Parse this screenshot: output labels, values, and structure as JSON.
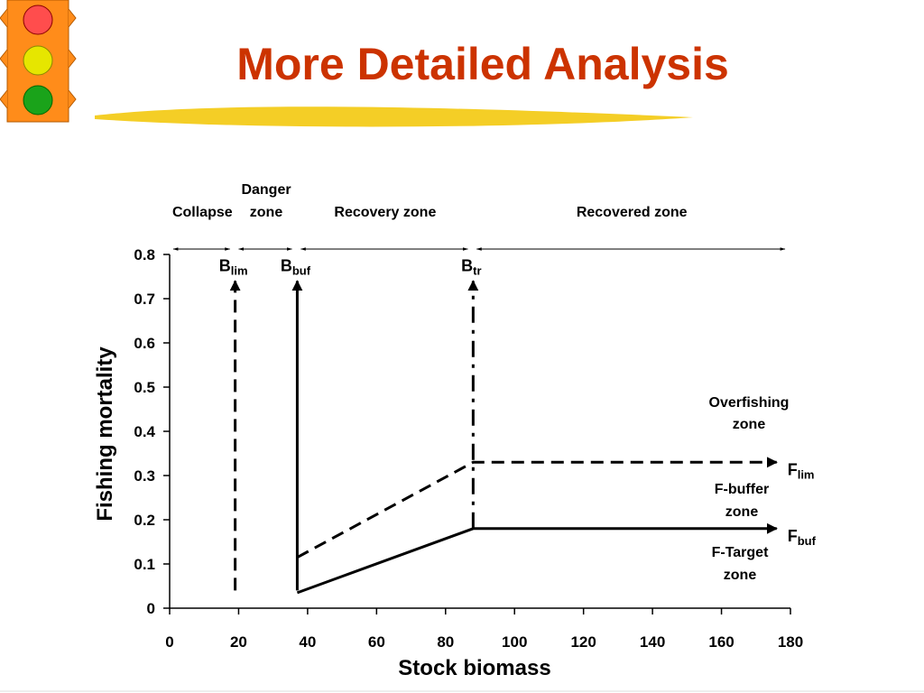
{
  "title": "More Detailed Analysis",
  "chart_data": {
    "type": "line",
    "x_label": "Stock biomass",
    "y_label": "Fishing mortality",
    "xlim": [
      0,
      180
    ],
    "ylim": [
      0,
      0.8
    ],
    "xticks": [
      0,
      20,
      40,
      60,
      80,
      100,
      120,
      140,
      160,
      180
    ],
    "yticks": [
      0,
      0.1,
      0.2,
      0.3,
      0.4,
      0.5,
      0.6,
      0.7,
      0.8
    ],
    "zones": [
      {
        "lines": [
          "Collapse"
        ],
        "range": [
          0,
          19
        ]
      },
      {
        "lines": [
          "Danger",
          "zone"
        ],
        "range": [
          19,
          37
        ]
      },
      {
        "lines": [
          "Recovery zone"
        ],
        "range": [
          37,
          88
        ]
      },
      {
        "lines": [
          "Recovered zone"
        ],
        "range": [
          88,
          180
        ]
      }
    ],
    "series": [
      {
        "label": "B",
        "label_sub": "lim",
        "color": "#000000",
        "style": "dashed",
        "x": [
          19,
          19
        ],
        "values": [
          0.04,
          0.74
        ]
      },
      {
        "label": "B",
        "label_sub": "buf",
        "color": "#000000",
        "style": "solid",
        "x": [
          37,
          37
        ],
        "values": [
          0.04,
          0.74
        ]
      },
      {
        "label": "B",
        "label_sub": "tr",
        "color": "#000000",
        "style": "dashdot",
        "x": [
          88,
          88
        ],
        "values": [
          0.18,
          0.74
        ]
      },
      {
        "label": "F",
        "label_sub": "lim",
        "color": "#000000",
        "style": "dashed",
        "x": [
          37,
          88,
          176
        ],
        "values": [
          0.115,
          0.33,
          0.33
        ]
      },
      {
        "label": "F",
        "label_sub": "buf",
        "color": "#000000",
        "style": "solid",
        "x": [
          37,
          88,
          176
        ],
        "values": [
          0.035,
          0.18,
          0.18
        ]
      }
    ],
    "annotations": [
      {
        "lines": [
          "Overfishing",
          "zone"
        ]
      },
      {
        "lines": [
          "F-buffer",
          "zone"
        ]
      },
      {
        "lines": [
          "F-Target",
          "zone"
        ]
      }
    ]
  }
}
